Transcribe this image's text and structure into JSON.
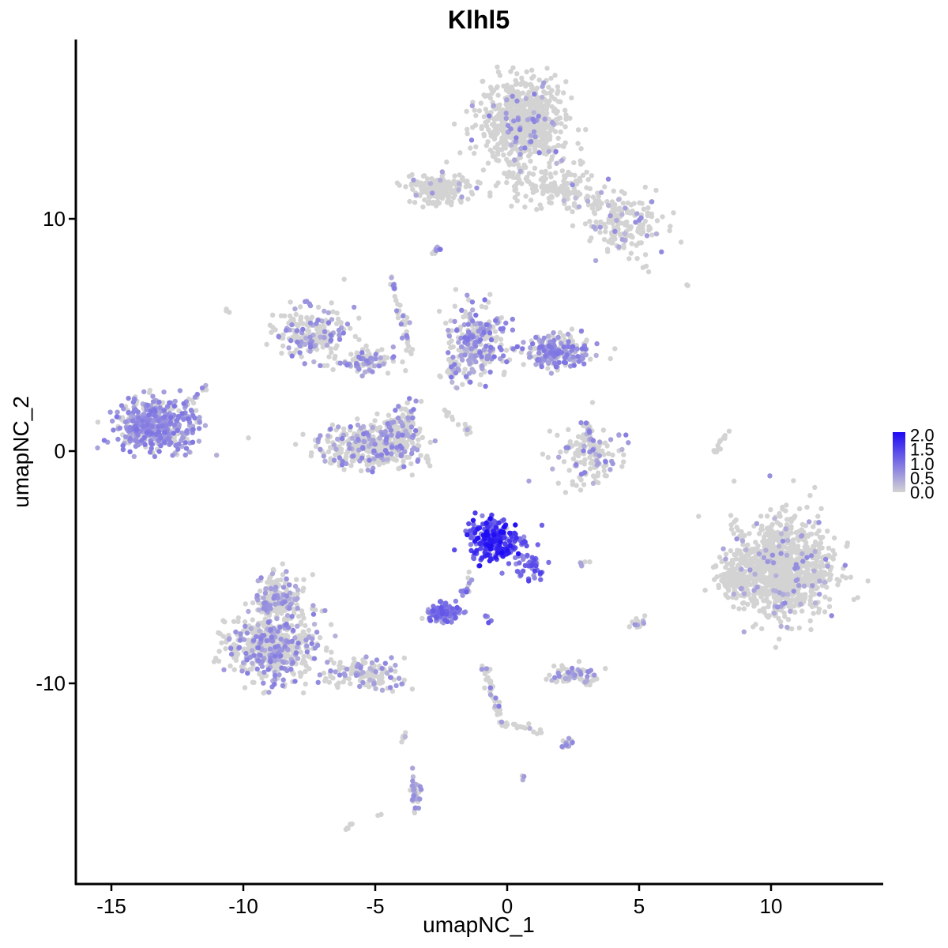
{
  "chart_data": {
    "type": "scatter",
    "title": "Klhl5",
    "xlabel": "umapNC_1",
    "ylabel": "umapNC_2",
    "xlim": [
      -16.4,
      14.4
    ],
    "ylim": [
      -19,
      17.7
    ],
    "x_ticks": [
      -15,
      -10,
      -5,
      0,
      5,
      10
    ],
    "x_tick_labels": [
      "-15",
      "-10",
      "-5",
      "0",
      "5",
      "10"
    ],
    "y_ticks": [
      -10,
      0,
      10
    ],
    "y_tick_labels": [
      "-10",
      "0",
      "10"
    ],
    "grid": false,
    "legend_position": "right",
    "color_scale": {
      "low": "#d3d3d3",
      "high": "#1e0af5",
      "min": 0,
      "max": 2.1,
      "ticks": [
        2.0,
        1.5,
        1.0,
        0.5,
        0.0
      ],
      "tick_labels": [
        "2.0",
        "1.5",
        "1.0",
        "0.5",
        "0.0"
      ]
    },
    "clusters": [
      {
        "cx": 0.6,
        "cy": 14.2,
        "sx": 1.0,
        "sy": 1.1,
        "n": 700,
        "expr_p": 0.06,
        "expr_max": 0.9
      },
      {
        "cx": 2.0,
        "cy": 11.5,
        "sx": 1.4,
        "sy": 0.8,
        "n": 140,
        "expr_p": 0.05,
        "expr_max": 0.8
      },
      {
        "cx": 4.5,
        "cy": 9.7,
        "sx": 0.9,
        "sy": 0.7,
        "n": 170,
        "expr_p": 0.1,
        "expr_max": 0.8
      },
      {
        "cx": -2.5,
        "cy": 11.3,
        "sx": 0.7,
        "sy": 0.4,
        "n": 200,
        "expr_p": 0.05,
        "expr_max": 0.7
      },
      {
        "cx": -13.3,
        "cy": 1.1,
        "sx": 0.9,
        "sy": 0.7,
        "n": 460,
        "expr_p": 0.7,
        "expr_max": 1.0
      },
      {
        "cx": -7.4,
        "cy": 5.0,
        "sx": 0.8,
        "sy": 0.7,
        "n": 200,
        "expr_p": 0.35,
        "expr_max": 0.9
      },
      {
        "cx": -5.4,
        "cy": 3.9,
        "sx": 0.7,
        "sy": 0.3,
        "n": 90,
        "expr_p": 0.3,
        "expr_max": 0.9
      },
      {
        "cx": -5.2,
        "cy": 0.2,
        "sx": 1.2,
        "sy": 0.6,
        "n": 400,
        "expr_p": 0.25,
        "expr_max": 0.9
      },
      {
        "cx": -3.9,
        "cy": 1.1,
        "sx": 0.4,
        "sy": 0.6,
        "n": 90,
        "expr_p": 0.3,
        "expr_max": 0.9
      },
      {
        "cx": -1.2,
        "cy": 4.7,
        "sx": 0.7,
        "sy": 0.9,
        "n": 260,
        "expr_p": 0.45,
        "expr_max": 1.0
      },
      {
        "cx": 1.8,
        "cy": 4.3,
        "sx": 0.8,
        "sy": 0.4,
        "n": 260,
        "expr_p": 0.5,
        "expr_max": 1.0
      },
      {
        "cx": 3.0,
        "cy": -0.2,
        "sx": 0.8,
        "sy": 0.8,
        "n": 130,
        "expr_p": 0.25,
        "expr_max": 0.9
      },
      {
        "cx": -0.5,
        "cy": -3.8,
        "sx": 0.6,
        "sy": 0.6,
        "n": 260,
        "expr_p": 0.96,
        "expr_max": 2.1
      },
      {
        "cx": 0.9,
        "cy": -4.9,
        "sx": 0.4,
        "sy": 0.4,
        "n": 40,
        "expr_p": 0.9,
        "expr_max": 1.6
      },
      {
        "cx": -2.4,
        "cy": -7.0,
        "sx": 0.45,
        "sy": 0.25,
        "n": 110,
        "expr_p": 0.85,
        "expr_max": 1.3
      },
      {
        "cx": -8.9,
        "cy": -8.4,
        "sx": 1.0,
        "sy": 0.9,
        "n": 500,
        "expr_p": 0.35,
        "expr_max": 0.9
      },
      {
        "cx": -8.7,
        "cy": -6.2,
        "sx": 0.5,
        "sy": 0.6,
        "n": 160,
        "expr_p": 0.3,
        "expr_max": 0.8
      },
      {
        "cx": -5.5,
        "cy": -9.6,
        "sx": 1.0,
        "sy": 0.4,
        "n": 130,
        "expr_p": 0.3,
        "expr_max": 0.8
      },
      {
        "cx": 10.5,
        "cy": -5.0,
        "sx": 1.2,
        "sy": 1.3,
        "n": 1000,
        "expr_p": 0.06,
        "expr_max": 0.8
      },
      {
        "cx": 8.6,
        "cy": -5.6,
        "sx": 0.4,
        "sy": 0.5,
        "n": 80,
        "expr_p": 0.04,
        "expr_max": 0.7
      },
      {
        "cx": 2.4,
        "cy": -9.6,
        "sx": 0.5,
        "sy": 0.25,
        "n": 70,
        "expr_p": 0.3,
        "expr_max": 0.8
      },
      {
        "cx": -3.5,
        "cy": -14.8,
        "sx": 0.15,
        "sy": 0.5,
        "n": 40,
        "expr_p": 0.4,
        "expr_max": 0.8
      },
      {
        "cx": 2.3,
        "cy": -12.6,
        "sx": 0.15,
        "sy": 0.15,
        "n": 15,
        "expr_p": 0.5,
        "expr_max": 1.0
      },
      {
        "cx": 5.0,
        "cy": -7.4,
        "sx": 0.2,
        "sy": 0.2,
        "n": 15,
        "expr_p": 0.1,
        "expr_max": 0.7
      },
      {
        "cx": 3.1,
        "cy": -9.9,
        "sx": 0.2,
        "sy": 0.1,
        "n": 10,
        "expr_p": 0.3,
        "expr_max": 0.8
      }
    ],
    "trails": [
      {
        "x0": -4.4,
        "y0": 7.5,
        "x1": -3.6,
        "y1": 4.0,
        "n": 40,
        "expr_p": 0.3,
        "expr_max": 0.9
      },
      {
        "x0": -2.5,
        "y0": 3.0,
        "x1": -1.6,
        "y1": 4.3,
        "n": 20,
        "expr_p": 0.1,
        "expr_max": 0.6
      },
      {
        "x0": -2.8,
        "y0": 8.5,
        "x1": -2.6,
        "y1": 8.8,
        "n": 10,
        "expr_p": 0.6,
        "expr_max": 1.0
      },
      {
        "x0": -2.5,
        "y0": 1.8,
        "x1": -1.3,
        "y1": 0.7,
        "n": 15,
        "expr_p": 0.1,
        "expr_max": 0.6
      },
      {
        "x0": 0.0,
        "y0": 11.9,
        "x1": 3.6,
        "y1": 10.6,
        "n": 50,
        "expr_p": 0.05,
        "expr_max": 0.6
      },
      {
        "x0": 8.3,
        "y0": 0.9,
        "x1": 7.8,
        "y1": -0.3,
        "n": 15,
        "expr_p": 0.0,
        "expr_max": 0.3
      },
      {
        "x0": -12.3,
        "y0": 1.8,
        "x1": -11.4,
        "y1": 2.8,
        "n": 15,
        "expr_p": 0.5,
        "expr_max": 0.9
      },
      {
        "x0": -2.0,
        "y0": 2.7,
        "x1": -2.2,
        "y1": 4.0,
        "n": 10,
        "expr_p": 0.2,
        "expr_max": 0.6
      },
      {
        "x0": 3.0,
        "y0": 1.2,
        "x1": 3.4,
        "y1": -0.2,
        "n": 25,
        "expr_p": 0.4,
        "expr_max": 0.9
      },
      {
        "x0": -0.9,
        "y0": -9.2,
        "x1": -0.1,
        "y1": -12.0,
        "n": 40,
        "expr_p": 0.3,
        "expr_max": 0.9
      },
      {
        "x0": 0.0,
        "y0": -11.7,
        "x1": 1.5,
        "y1": -12.1,
        "n": 15,
        "expr_p": 0.1,
        "expr_max": 0.7
      },
      {
        "x0": -1.2,
        "y0": -5.2,
        "x1": -1.8,
        "y1": -6.3,
        "n": 12,
        "expr_p": 0.9,
        "expr_max": 1.3
      },
      {
        "x0": -0.8,
        "y0": -7.1,
        "x1": -0.7,
        "y1": -7.4,
        "n": 5,
        "expr_p": 0.9,
        "expr_max": 1.4
      },
      {
        "x0": -3.9,
        "y0": -12.1,
        "x1": -3.8,
        "y1": -12.9,
        "n": 6,
        "expr_p": 0.2,
        "expr_max": 0.8
      },
      {
        "x0": -6.1,
        "y0": -16.3,
        "x1": -5.9,
        "y1": -16.1,
        "n": 6,
        "expr_p": 0.0,
        "expr_max": 0.3
      },
      {
        "x0": 2.6,
        "y0": -4.9,
        "x1": 3.0,
        "y1": -4.8,
        "n": 6,
        "expr_p": 0.1,
        "expr_max": 0.7
      },
      {
        "x0": 6.8,
        "y0": 7.1,
        "x1": 6.9,
        "y1": 7.0,
        "n": 2,
        "expr_p": 0.0,
        "expr_max": 0.3
      },
      {
        "x0": -10.6,
        "y0": 6.1,
        "x1": -10.5,
        "y1": 6.0,
        "n": 3,
        "expr_p": 0.0,
        "expr_max": 0.3
      },
      {
        "x0": 5.1,
        "y0": 7.9,
        "x1": 5.3,
        "y1": 7.9,
        "n": 3,
        "expr_p": 0.0,
        "expr_max": 0.3
      },
      {
        "x0": 0.6,
        "y0": -14.0,
        "x1": 0.7,
        "y1": -14.1,
        "n": 3,
        "expr_p": 0.3,
        "expr_max": 0.7
      },
      {
        "x0": -4.9,
        "y0": -15.7,
        "x1": -4.8,
        "y1": -15.7,
        "n": 2,
        "expr_p": 0.0,
        "expr_max": 0.3
      }
    ]
  }
}
